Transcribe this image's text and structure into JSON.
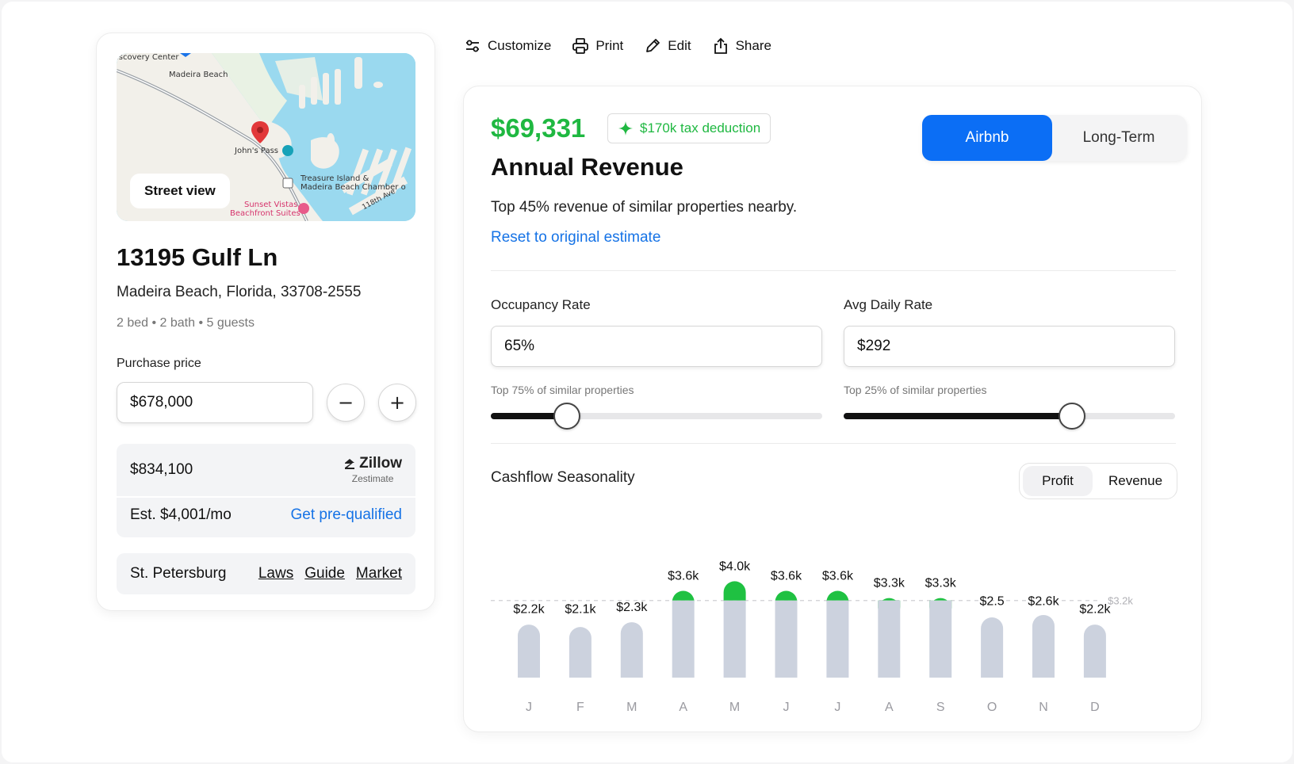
{
  "property": {
    "map": {
      "street_view_label": "Street view",
      "labels": [
        "iscovery Center",
        "Madeira Beach",
        "John's Pass",
        "Treasure Island &",
        "Madeira Beach Chamber o",
        "Sunset Vistas",
        "Beachfront Suites",
        "118th Ave"
      ]
    },
    "address": "13195 Gulf Ln",
    "city_line": "Madeira Beach, Florida, 33708-2555",
    "details": "2 bed • 2 bath • 5 guests",
    "purchase_price_label": "Purchase price",
    "purchase_price_value": "$678,000",
    "minus_label": "−",
    "plus_label": "+",
    "zestimate_value": "$834,100",
    "zillow_brand": "Zillow",
    "zillow_sub": "Zestimate",
    "est_monthly": "Est. $4,001/mo",
    "prequal_label": "Get pre-qualified",
    "city_name": "St. Petersburg",
    "city_links": [
      "Laws",
      "Guide",
      "Market"
    ]
  },
  "toolbar": {
    "customize": "Customize",
    "print": "Print",
    "edit": "Edit",
    "share": "Share"
  },
  "revenue": {
    "amount": "$69,331",
    "tax_badge": "$170k tax deduction",
    "title": "Annual Revenue",
    "description": "Top 45% revenue of similar properties nearby.",
    "reset_label": "Reset to original estimate",
    "modes": [
      "Airbnb",
      "Long-Term"
    ],
    "active_mode": "Airbnb",
    "accent_color": "#0b6ef5",
    "positive_color": "#1fb841"
  },
  "sliders": {
    "occupancy": {
      "label": "Occupancy Rate",
      "value": "65%",
      "hint": "Top 75% of similar properties",
      "level": 0.23
    },
    "adr": {
      "label": "Avg Daily Rate",
      "value": "$292",
      "hint": "Top 25% of similar properties",
      "level": 0.69
    }
  },
  "seasonality": {
    "title": "Cashflow Seasonality",
    "metrics": [
      "Profit",
      "Revenue"
    ],
    "active_metric": "Profit"
  },
  "chart_data": {
    "type": "bar",
    "categories": [
      "J",
      "F",
      "M",
      "A",
      "M",
      "J",
      "J",
      "A",
      "S",
      "O",
      "N",
      "D"
    ],
    "values": [
      2.2,
      2.1,
      2.3,
      3.6,
      4.0,
      3.6,
      3.6,
      3.3,
      3.3,
      2.5,
      2.6,
      2.2
    ],
    "data_labels": [
      "$2.2k",
      "$2.1k",
      "$2.3k",
      "$3.6k",
      "$4.0k",
      "$3.6k",
      "$3.6k",
      "$3.3k",
      "$3.3k",
      "$2.5",
      "$2.6k",
      "$2.2k"
    ],
    "reference_line": {
      "value": 3.2,
      "label": "$3.2k"
    },
    "ylim": [
      0,
      4.0
    ],
    "above_reference_color": "#1fc142",
    "bar_color": "#ccd2de",
    "grid": false
  }
}
